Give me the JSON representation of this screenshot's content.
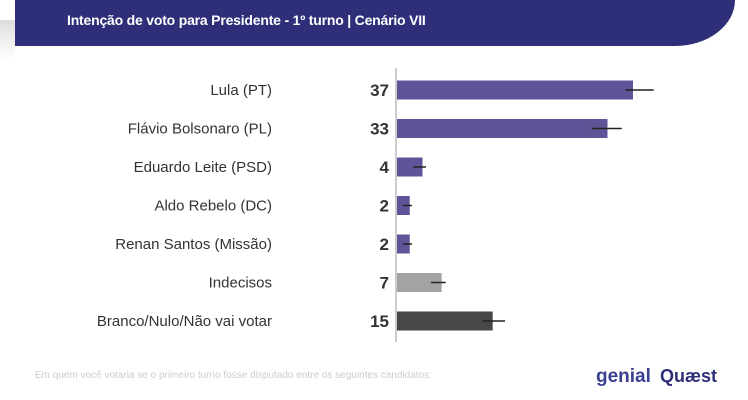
{
  "header": {
    "title": "Intenção de voto para Presidente - 1º turno | Cenário VII"
  },
  "footer": {
    "note": "Em quem você votaria se o primeiro turno fosse disputado entre os seguintes candidatos:",
    "logos": [
      "genial investimentos",
      "Quaest"
    ]
  },
  "chart_data": {
    "type": "bar",
    "orientation": "horizontal",
    "title": "Intenção de voto para Presidente - 1º turno | Cenário VII",
    "categories": [
      "Lula (PT)",
      "Flávio Bolsonaro (PL)",
      "Eduardo Leite (PSD)",
      "Aldo Rebelo (DC)",
      "Renan Santos (Missão)",
      "Indecisos",
      "Branco/Nulo/Não vai votar"
    ],
    "values": [
      37,
      33,
      4,
      2,
      2,
      7,
      15
    ],
    "error_low": [
      36,
      30.7,
      2.7,
      1.1,
      1.1,
      5.5,
      13.6
    ],
    "error_high": [
      40.4,
      35.4,
      4.7,
      2.5,
      2.5,
      7.8,
      17.1
    ],
    "colors": [
      "#5e5599",
      "#5e5599",
      "#5e5599",
      "#5e5599",
      "#5e5599",
      "#a3a3a3",
      "#474747"
    ],
    "xlim": [
      0,
      55
    ],
    "grid": false
  }
}
